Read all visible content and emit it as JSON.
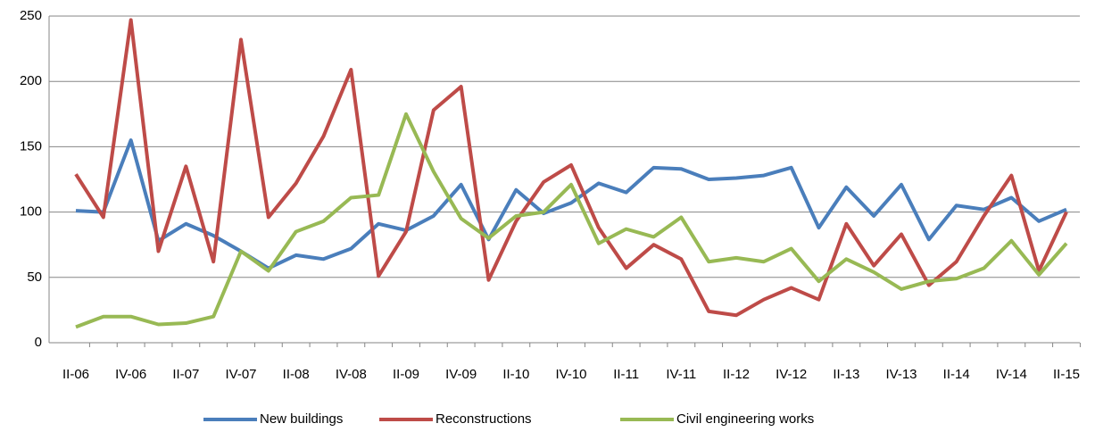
{
  "chart_data": {
    "type": "line",
    "categories": [
      "II-06",
      null,
      "IV-06",
      null,
      "II-07",
      null,
      "IV-07",
      null,
      "II-08",
      null,
      "IV-08",
      null,
      "II-09",
      null,
      "IV-09",
      null,
      "II-10",
      null,
      "IV-10",
      null,
      "II-11",
      null,
      "IV-11",
      null,
      "II-12",
      null,
      "IV-12",
      null,
      "II-13",
      null,
      "IV-13",
      null,
      "II-14",
      null,
      "IV-14",
      null,
      "II-15"
    ],
    "series": [
      {
        "name": "New buildings",
        "color": "#4a7ebb",
        "values": [
          101,
          100,
          155,
          78,
          91,
          82,
          70,
          57,
          67,
          64,
          72,
          91,
          86,
          97,
          121,
          79,
          117,
          99,
          107,
          122,
          115,
          134,
          133,
          125,
          126,
          128,
          134,
          88,
          119,
          97,
          121,
          79,
          105,
          102,
          111,
          93,
          102
        ]
      },
      {
        "name": "Reconstructions",
        "color": "#be4b48",
        "values": [
          129,
          96,
          247,
          70,
          135,
          62,
          232,
          96,
          122,
          158,
          209,
          51,
          85,
          178,
          196,
          48,
          93,
          123,
          136,
          88,
          57,
          75,
          64,
          24,
          21,
          33,
          42,
          33,
          91,
          59,
          83,
          44,
          62,
          97,
          128,
          55,
          100
        ]
      },
      {
        "name": "Civil engineering works",
        "color": "#98b954",
        "values": [
          12,
          20,
          20,
          14,
          15,
          20,
          70,
          55,
          85,
          93,
          111,
          113,
          175,
          131,
          95,
          80,
          97,
          100,
          121,
          76,
          87,
          81,
          96,
          62,
          65,
          62,
          72,
          47,
          64,
          54,
          41,
          47,
          49,
          57,
          78,
          52,
          76
        ]
      }
    ],
    "ylim": [
      0,
      250
    ],
    "yticks": [
      0,
      50,
      100,
      150,
      200,
      250
    ],
    "grid": true,
    "legend": "bottom"
  }
}
